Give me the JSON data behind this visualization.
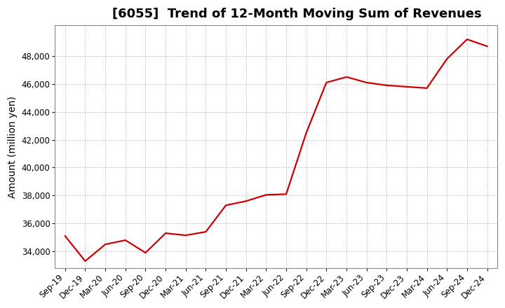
{
  "title": "[6055]  Trend of 12-Month Moving Sum of Revenues",
  "ylabel": "Amount (million yen)",
  "line_color": "#cc0000",
  "background_color": "#ffffff",
  "plot_bg_color": "#ffffff",
  "grid_color": "#aaaaaa",
  "x_labels": [
    "Sep-19",
    "Dec-19",
    "Mar-20",
    "Jun-20",
    "Sep-20",
    "Dec-20",
    "Mar-21",
    "Jun-21",
    "Sep-21",
    "Dec-21",
    "Mar-22",
    "Jun-22",
    "Sep-22",
    "Dec-22",
    "Mar-23",
    "Jun-23",
    "Sep-23",
    "Dec-23",
    "Mar-24",
    "Jun-24",
    "Sep-24",
    "Dec-24"
  ],
  "values": [
    35100,
    33300,
    34500,
    34800,
    33900,
    35300,
    35150,
    35400,
    37300,
    37600,
    38050,
    38100,
    42500,
    46100,
    46500,
    46100,
    45900,
    45800,
    45700,
    47800,
    49200,
    48700
  ],
  "ylim_min": 32800,
  "ylim_max": 50200,
  "yticks": [
    34000,
    36000,
    38000,
    40000,
    42000,
    44000,
    46000,
    48000
  ],
  "title_fontsize": 13,
  "tick_fontsize": 8.5,
  "ylabel_fontsize": 10,
  "line_width": 1.6
}
